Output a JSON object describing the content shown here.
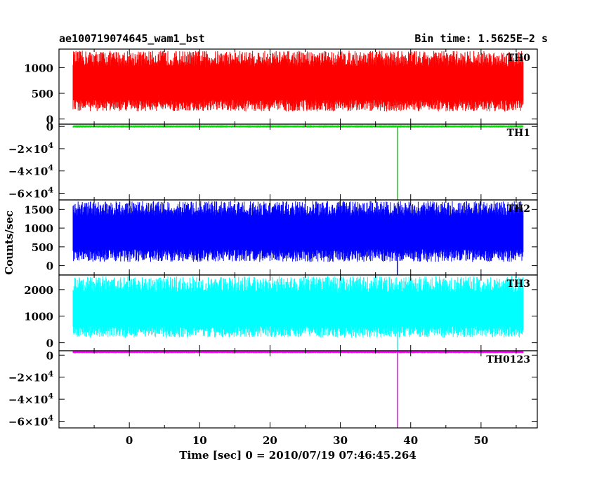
{
  "header": {
    "left": "ae100719074645_wam1_bst",
    "right": "Bin time: 1.5625E−2 s"
  },
  "chart_data": {
    "type": "line",
    "title": "ae100719074645_wam1_bst",
    "subtitle": "Bin time: 1.5625E−2 s",
    "xlabel": "Time [sec] 0 = 2010/07/19 07:46:45.264",
    "ylabel": "Counts/sec",
    "xlim": [
      -10,
      58
    ],
    "x_ticks": [
      0,
      10,
      20,
      30,
      40,
      50
    ],
    "x_data_range": [
      -8,
      56
    ],
    "grid": false,
    "panels": [
      {
        "name": "TH0",
        "color": "#ff0000",
        "ylim": [
          -100,
          1360
        ],
        "y_ticks": [
          {
            "v": 0,
            "t": "0"
          },
          {
            "v": 500,
            "t": "500"
          },
          {
            "v": 1000,
            "t": "1000"
          }
        ],
        "level": 650,
        "noise_low": 150,
        "noise_high": 1330,
        "spike": null
      },
      {
        "name": "TH1",
        "color": "#00dd00",
        "ylim": [
          -66000,
          2000
        ],
        "y_ticks": [
          {
            "v": 0,
            "m": "0"
          },
          {
            "v": -20000,
            "m": "−2×10",
            "e": "4"
          },
          {
            "v": -40000,
            "m": "−4×10",
            "e": "4"
          },
          {
            "v": -60000,
            "m": "−6×10",
            "e": "4"
          }
        ],
        "level": 0,
        "noise_low": -300,
        "noise_high": 300,
        "spike": {
          "x": 38.1,
          "value": -66000
        }
      },
      {
        "name": "TH2",
        "color": "#0000ff",
        "ylim": [
          -250,
          1750
        ],
        "y_ticks": [
          {
            "v": 0,
            "t": "0"
          },
          {
            "v": 500,
            "t": "500"
          },
          {
            "v": 1000,
            "t": "1000"
          },
          {
            "v": 1500,
            "t": "1500"
          }
        ],
        "level": 850,
        "noise_low": 100,
        "noise_high": 1720,
        "spike": {
          "x": 38.1,
          "value": -250
        }
      },
      {
        "name": "TH3",
        "color": "#00ffff",
        "ylim": [
          -300,
          2550
        ],
        "y_ticks": [
          {
            "v": 0,
            "t": "0"
          },
          {
            "v": 1000,
            "t": "1000"
          },
          {
            "v": 2000,
            "t": "2000"
          }
        ],
        "level": 1150,
        "noise_low": 200,
        "noise_high": 2500,
        "spike": {
          "x": 38.1,
          "value": -300
        }
      },
      {
        "name": "TH0123",
        "color": "#ff00ff",
        "ylim": [
          -66000,
          4000
        ],
        "y_ticks": [
          {
            "v": 0,
            "m": "0"
          },
          {
            "v": -20000,
            "m": "−2×10",
            "e": "4"
          },
          {
            "v": -40000,
            "m": "−4×10",
            "e": "4"
          },
          {
            "v": -60000,
            "m": "−6×10",
            "e": "4"
          }
        ],
        "level": 2800,
        "noise_low": 1800,
        "noise_high": 4000,
        "spike": {
          "x": 38.1,
          "value": -66000
        }
      }
    ]
  }
}
